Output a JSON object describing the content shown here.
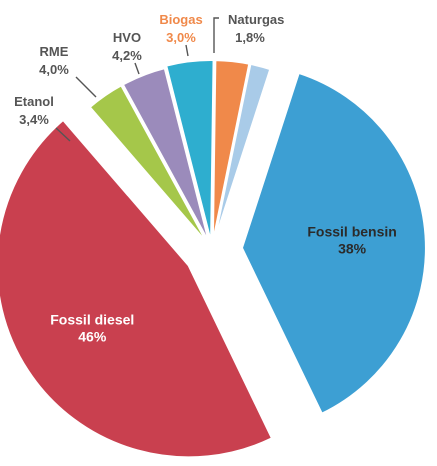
{
  "chart_data": {
    "type": "pie",
    "slices": [
      {
        "name": "Fossil bensin",
        "label": "38%",
        "value": 38,
        "color": "#3d9fd3",
        "text_color": "#2b2b2b",
        "label_position": "inside"
      },
      {
        "name": "Fossil diesel",
        "label": "46%",
        "value": 46,
        "color": "#c9404f",
        "text_color": "#ffffff",
        "label_position": "inside"
      },
      {
        "name": "Etanol",
        "label": "3,4%",
        "value": 3.4,
        "color": "#a5c74a",
        "text_color": "#555555",
        "label_position": "outside"
      },
      {
        "name": "RME",
        "label": "4,0%",
        "value": 4.0,
        "color": "#9b8bbb",
        "text_color": "#555555",
        "label_position": "outside"
      },
      {
        "name": "HVO",
        "label": "4,2%",
        "value": 4.2,
        "color": "#2eaecf",
        "text_color": "#555555",
        "label_position": "outside"
      },
      {
        "name": "Biogas",
        "label": "3,0%",
        "value": 3.0,
        "color": "#f0894a",
        "text_color": "#f0894a",
        "label_position": "outside"
      },
      {
        "name": "Naturgas",
        "label": "1,8%",
        "value": 1.8,
        "color": "#a9cbe8",
        "text_color": "#555555",
        "label_position": "outside"
      }
    ],
    "style": "exploded-pie"
  }
}
